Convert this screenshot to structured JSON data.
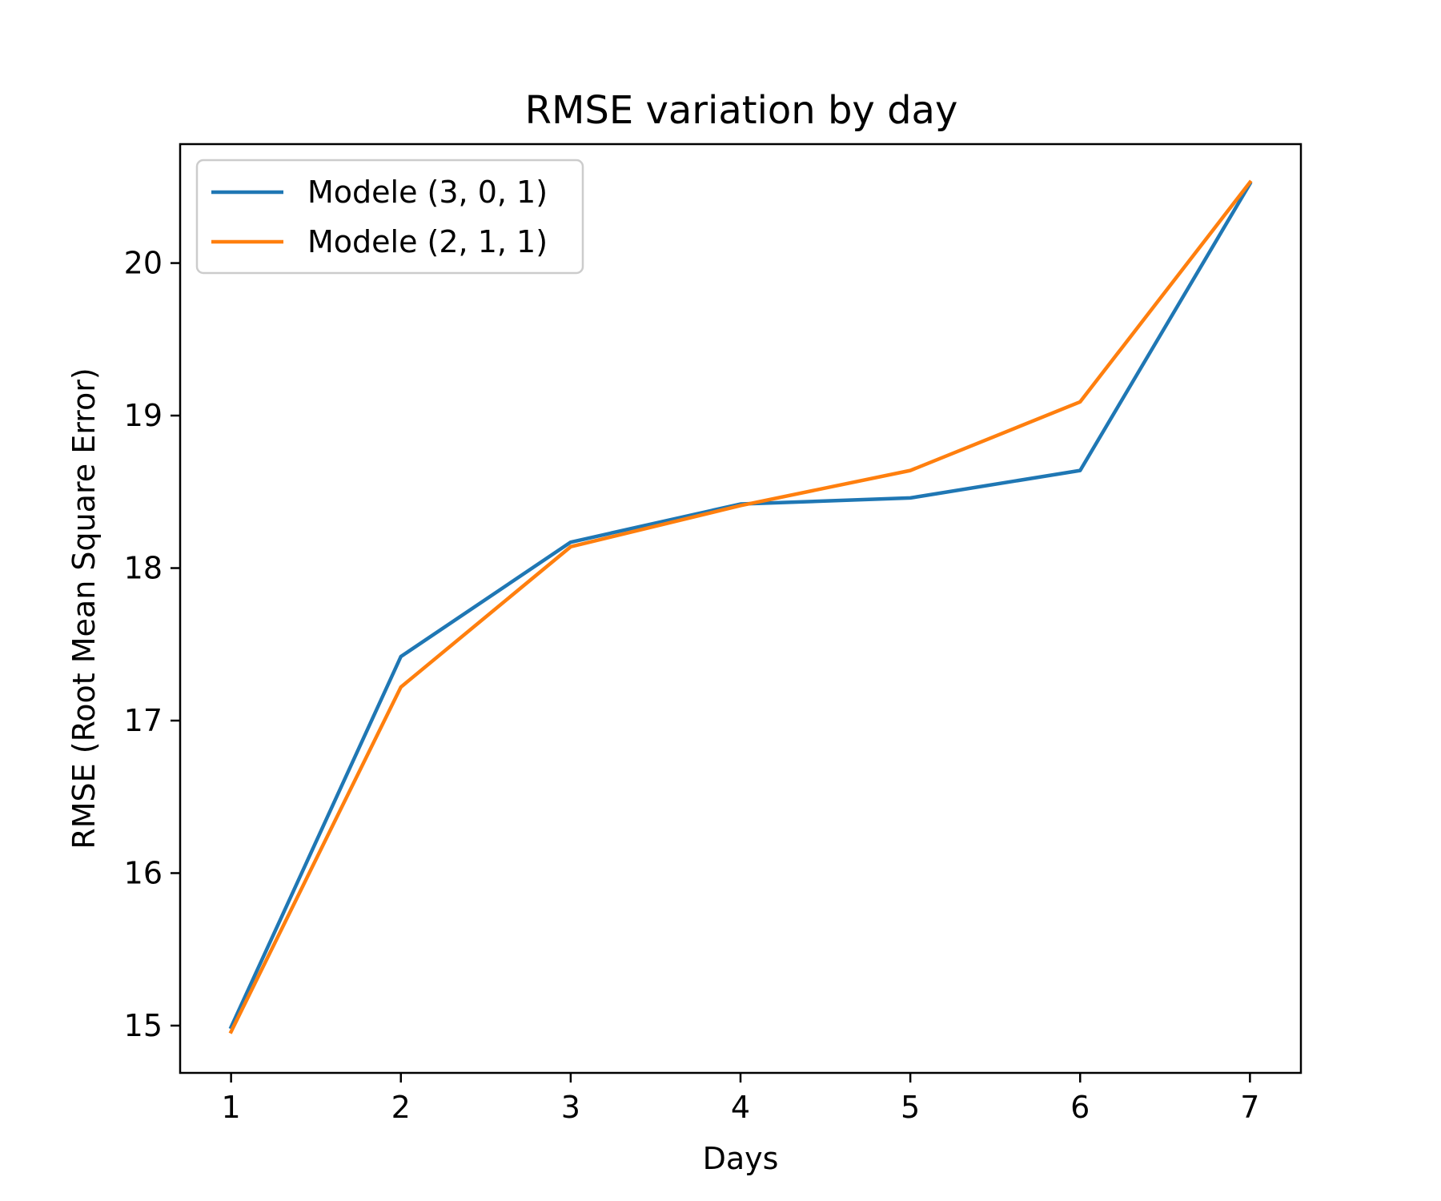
{
  "chart_data": {
    "type": "line",
    "title": "RMSE variation by day",
    "xlabel": "Days",
    "ylabel": "RMSE (Root Mean Square Error)",
    "x": [
      1,
      2,
      3,
      4,
      5,
      6,
      7
    ],
    "x_ticks": [
      "1",
      "2",
      "3",
      "4",
      "5",
      "6",
      "7"
    ],
    "y_ticks": [
      "15",
      "16",
      "17",
      "18",
      "19",
      "20"
    ],
    "xlim": [
      0.7,
      7.3
    ],
    "ylim": [
      14.69,
      20.78
    ],
    "grid": false,
    "legend_position": "upper-left",
    "series": [
      {
        "name": "Modele (3, 0, 1)",
        "color": "#1f77b4",
        "values": [
          14.99,
          17.42,
          18.17,
          18.42,
          18.46,
          18.64,
          20.52
        ]
      },
      {
        "name": "Modele (2, 1, 1)",
        "color": "#ff7f0e",
        "values": [
          14.96,
          17.22,
          18.14,
          18.41,
          18.64,
          19.09,
          20.53
        ]
      }
    ]
  }
}
